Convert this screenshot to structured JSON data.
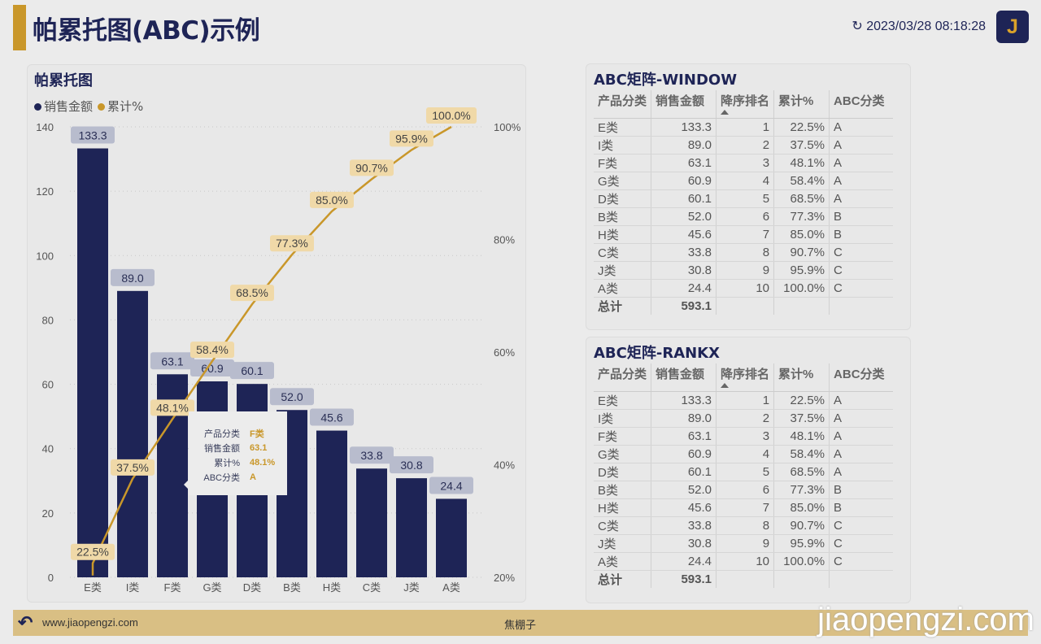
{
  "header": {
    "title": "帕累托图(ABC)示例",
    "refresh_time": "2023/03/28 08:18:28",
    "logo": "J",
    "refresh_icon": "refresh-icon"
  },
  "chart_panel": {
    "title": "帕累托图",
    "legend": [
      {
        "label": "销售金额",
        "color": "#1e2456"
      },
      {
        "label": "累计%",
        "color": "#c9972a"
      }
    ]
  },
  "chart_data": {
    "type": "bar+line",
    "categories": [
      "E类",
      "I类",
      "F类",
      "G类",
      "D类",
      "B类",
      "H类",
      "C类",
      "J类",
      "A类"
    ],
    "series": [
      {
        "name": "销售金额",
        "type": "bar",
        "axis": "left",
        "color": "#1e2456",
        "values": [
          133.3,
          89.0,
          63.1,
          60.9,
          60.1,
          52.0,
          45.6,
          33.8,
          30.8,
          24.4
        ],
        "labels": [
          "133.3",
          "89.0",
          "63.1",
          "60.9",
          "60.1",
          "52.0",
          "45.6",
          "33.8",
          "30.8",
          "24.4"
        ]
      },
      {
        "name": "累计%",
        "type": "line",
        "axis": "right",
        "color": "#c9972a",
        "values": [
          22.5,
          37.5,
          48.1,
          58.4,
          68.5,
          77.3,
          85.0,
          90.7,
          95.9,
          100.0
        ],
        "labels": [
          "22.5%",
          "37.5%",
          "48.1%",
          "58.4%",
          "68.5%",
          "77.3%",
          "85.0%",
          "90.7%",
          "95.9%",
          "100.0%"
        ]
      }
    ],
    "y_left": {
      "range": [
        0,
        140
      ],
      "ticks": [
        "0",
        "20",
        "40",
        "60",
        "80",
        "100",
        "120",
        "140"
      ]
    },
    "y_right": {
      "range": [
        20,
        100
      ],
      "ticks": [
        "20%",
        "40%",
        "60%",
        "80%",
        "100%"
      ]
    },
    "grid": true,
    "legend": "top-left"
  },
  "tooltip": {
    "rows": [
      {
        "k": "产品分类",
        "v": "F类"
      },
      {
        "k": "销售金额",
        "v": "63.1"
      },
      {
        "k": "累计%",
        "v": "48.1%"
      },
      {
        "k": "ABC分类",
        "v": "A"
      }
    ]
  },
  "tables": [
    {
      "title": "ABC矩阵-WINDOW",
      "headers": [
        "产品分类",
        "销售金额",
        "降序排名",
        "累计%",
        "ABC分类"
      ],
      "rows": [
        [
          "E类",
          "133.3",
          "1",
          "22.5%",
          "A"
        ],
        [
          "I类",
          "89.0",
          "2",
          "37.5%",
          "A"
        ],
        [
          "F类",
          "63.1",
          "3",
          "48.1%",
          "A"
        ],
        [
          "G类",
          "60.9",
          "4",
          "58.4%",
          "A"
        ],
        [
          "D类",
          "60.1",
          "5",
          "68.5%",
          "A"
        ],
        [
          "B类",
          "52.0",
          "6",
          "77.3%",
          "B"
        ],
        [
          "H类",
          "45.6",
          "7",
          "85.0%",
          "B"
        ],
        [
          "C类",
          "33.8",
          "8",
          "90.7%",
          "C"
        ],
        [
          "J类",
          "30.8",
          "9",
          "95.9%",
          "C"
        ],
        [
          "A类",
          "24.4",
          "10",
          "100.0%",
          "C"
        ]
      ],
      "total": [
        "总计",
        "593.1",
        "",
        "",
        ""
      ]
    },
    {
      "title": "ABC矩阵-RANKX",
      "headers": [
        "产品分类",
        "销售金额",
        "降序排名",
        "累计%",
        "ABC分类"
      ],
      "rows": [
        [
          "E类",
          "133.3",
          "1",
          "22.5%",
          "A"
        ],
        [
          "I类",
          "89.0",
          "2",
          "37.5%",
          "A"
        ],
        [
          "F类",
          "63.1",
          "3",
          "48.1%",
          "A"
        ],
        [
          "G类",
          "60.9",
          "4",
          "58.4%",
          "A"
        ],
        [
          "D类",
          "60.1",
          "5",
          "68.5%",
          "A"
        ],
        [
          "B类",
          "52.0",
          "6",
          "77.3%",
          "B"
        ],
        [
          "H类",
          "45.6",
          "7",
          "85.0%",
          "B"
        ],
        [
          "C类",
          "33.8",
          "8",
          "90.7%",
          "C"
        ],
        [
          "J类",
          "30.8",
          "9",
          "95.9%",
          "C"
        ],
        [
          "A类",
          "24.4",
          "10",
          "100.0%",
          "C"
        ]
      ],
      "total": [
        "总计",
        "593.1",
        "",
        "",
        ""
      ]
    }
  ],
  "footer": {
    "site": "www.jiaopengzi.com",
    "author": "焦棚子",
    "watermark": "jiaopengzi.com"
  }
}
